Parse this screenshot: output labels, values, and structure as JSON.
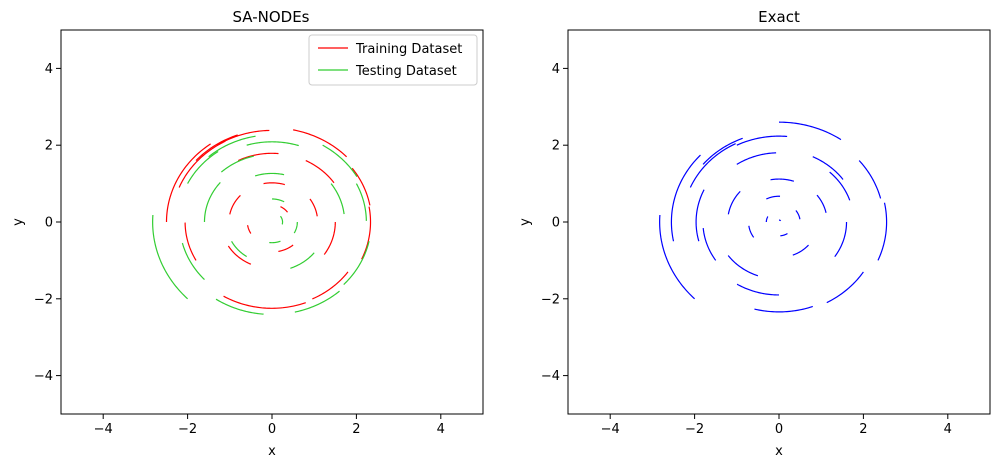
{
  "chart_data": [
    {
      "type": "line",
      "title": "SA-NODEs",
      "xlabel": "x",
      "ylabel": "y",
      "xlim": [
        -5,
        5
      ],
      "ylim": [
        -5,
        5
      ],
      "xticks": [
        -4,
        -2,
        0,
        2,
        4
      ],
      "yticks": [
        -4,
        -2,
        0,
        2,
        4
      ],
      "xtick_labels": [
        "−4",
        "−2",
        "0",
        "2",
        "4"
      ],
      "ytick_labels": [
        "−4",
        "−2",
        "0",
        "2",
        "4"
      ],
      "grid": false,
      "legend": "top-right",
      "legend_entries": [
        "Training Dataset",
        "Testing Dataset"
      ],
      "series": [
        {
          "name": "Training Dataset",
          "color": "#ff0000",
          "trajectories": [
            {
              "start": [
                -2.5,
                0.0
              ],
              "sweep": 0.95
            },
            {
              "start": [
                -2.2,
                0.9
              ],
              "sweep": 0.7
            },
            {
              "start": [
                -1.8,
                1.6
              ],
              "sweep": 0.5
            },
            {
              "start": [
                -1.3,
                2.0
              ],
              "sweep": 0.55
            },
            {
              "start": [
                0.5,
                2.4
              ],
              "sweep": 0.6
            },
            {
              "start": [
                1.9,
                1.4
              ],
              "sweep": 0.45
            },
            {
              "start": [
                2.3,
                0.4
              ],
              "sweep": 0.6
            },
            {
              "start": [
                1.8,
                -1.3
              ],
              "sweep": 0.5
            },
            {
              "start": [
                0.8,
                -2.1
              ],
              "sweep": 0.9
            },
            {
              "start": [
                -1.8,
                -1.0
              ],
              "sweep": 0.5
            },
            {
              "start": [
                -0.8,
                1.6
              ],
              "sweep": 0.55
            },
            {
              "start": [
                0.8,
                1.6
              ],
              "sweep": 0.5
            },
            {
              "start": [
                1.5,
                0.0
              ],
              "sweep": 0.6
            },
            {
              "start": [
                -0.5,
                -1.1
              ],
              "sweep": 0.6
            },
            {
              "start": [
                -1.0,
                0.2
              ],
              "sweep": 0.55
            },
            {
              "start": [
                -0.2,
                1.0
              ],
              "sweep": 0.5
            },
            {
              "start": [
                0.9,
                0.6
              ],
              "sweep": 0.45
            },
            {
              "start": [
                0.5,
                -0.6
              ],
              "sweep": 0.5
            },
            {
              "start": [
                -0.5,
                -0.3
              ],
              "sweep": 0.4
            },
            {
              "start": [
                0.2,
                0.4
              ],
              "sweep": 0.5
            }
          ]
        },
        {
          "name": "Testing Dataset",
          "color": "#32cd32",
          "trajectories": [
            {
              "start": [
                -2.0,
                -2.0
              ],
              "sweep": 0.85
            },
            {
              "start": [
                -2.0,
                1.0
              ],
              "sweep": 0.5
            },
            {
              "start": [
                -1.5,
                1.7
              ],
              "sweep": 0.55
            },
            {
              "start": [
                -0.6,
                2.0
              ],
              "sweep": 0.6
            },
            {
              "start": [
                1.2,
                2.0
              ],
              "sweep": 0.5
            },
            {
              "start": [
                2.0,
                1.0
              ],
              "sweep": 0.45
            },
            {
              "start": [
                2.3,
                -0.5
              ],
              "sweep": 0.55
            },
            {
              "start": [
                1.6,
                -1.8
              ],
              "sweep": 0.5
            },
            {
              "start": [
                -0.2,
                -2.4
              ],
              "sweep": 0.5
            },
            {
              "start": [
                -1.6,
                -1.5
              ],
              "sweep": 0.5
            },
            {
              "start": [
                -1.6,
                0.0
              ],
              "sweep": 0.7
            },
            {
              "start": [
                -0.4,
                1.2
              ],
              "sweep": 0.55
            },
            {
              "start": [
                1.4,
                1.0
              ],
              "sweep": 0.5
            },
            {
              "start": [
                1.0,
                -0.8
              ],
              "sweep": 0.55
            },
            {
              "start": [
                -0.6,
                -0.9
              ],
              "sweep": 0.5
            },
            {
              "start": [
                0.0,
                0.6
              ],
              "sweep": 0.5
            },
            {
              "start": [
                0.6,
                0.0
              ],
              "sweep": 0.5
            },
            {
              "start": [
                0.2,
                -0.5
              ],
              "sweep": 0.5
            },
            {
              "start": [
                0.2,
                0.15
              ],
              "sweep": 0.9
            },
            {
              "start": [
                -1.2,
                1.3
              ],
              "sweep": 0.5
            }
          ]
        }
      ]
    },
    {
      "type": "line",
      "title": "Exact",
      "xlabel": "x",
      "ylabel": "y",
      "xlim": [
        -5,
        5
      ],
      "ylim": [
        -5,
        5
      ],
      "xticks": [
        -4,
        -2,
        0,
        2,
        4
      ],
      "yticks": [
        -4,
        -2,
        0,
        2,
        4
      ],
      "xtick_labels": [
        "−4",
        "−2",
        "0",
        "2",
        "4"
      ],
      "ytick_labels": [
        "−4",
        "−2",
        "0",
        "2",
        "4"
      ],
      "grid": false,
      "series": [
        {
          "color": "#0000ff",
          "trajectories": [
            {
              "start": [
                -2.5,
                -0.5
              ],
              "sweep": 0.95
            },
            {
              "start": [
                -2.1,
                0.9
              ],
              "sweep": 0.7
            },
            {
              "start": [
                -1.8,
                1.5
              ],
              "sweep": 0.5
            },
            {
              "start": [
                -1.0,
                2.0
              ],
              "sweep": 0.55
            },
            {
              "start": [
                0.0,
                2.6
              ],
              "sweep": 0.6
            },
            {
              "start": [
                1.9,
                1.6
              ],
              "sweep": 0.45
            },
            {
              "start": [
                2.5,
                0.5
              ],
              "sweep": 0.6
            },
            {
              "start": [
                2.0,
                -1.3
              ],
              "sweep": 0.5
            },
            {
              "start": [
                0.8,
                -2.2
              ],
              "sweep": 0.6
            },
            {
              "start": [
                -2.0,
                -2.0
              ],
              "sweep": 0.85
            },
            {
              "start": [
                -1.5,
                -1.0
              ],
              "sweep": 0.5
            },
            {
              "start": [
                -1.0,
                1.5
              ],
              "sweep": 0.55
            },
            {
              "start": [
                0.8,
                1.7
              ],
              "sweep": 0.5
            },
            {
              "start": [
                1.6,
                0.0
              ],
              "sweep": 0.6
            },
            {
              "start": [
                -0.5,
                -1.4
              ],
              "sweep": 0.6
            },
            {
              "start": [
                -1.2,
                0.2
              ],
              "sweep": 0.55
            },
            {
              "start": [
                -0.2,
                1.1
              ],
              "sweep": 0.5
            },
            {
              "start": [
                0.9,
                0.7
              ],
              "sweep": 0.45
            },
            {
              "start": [
                0.7,
                -0.6
              ],
              "sweep": 0.5
            },
            {
              "start": [
                -0.6,
                -0.4
              ],
              "sweep": 0.45
            },
            {
              "start": [
                -0.3,
                0.6
              ],
              "sweep": 0.5
            },
            {
              "start": [
                0.4,
                0.3
              ],
              "sweep": 0.5
            },
            {
              "start": [
                0.2,
                -0.3
              ],
              "sweep": 0.5
            },
            {
              "start": [
                -1.9,
                -0.5
              ],
              "sweep": 0.7
            },
            {
              "start": [
                1.2,
                1.3
              ],
              "sweep": 0.5
            },
            {
              "start": [
                0.0,
                -1.9
              ],
              "sweep": 0.55
            },
            {
              "start": [
                -0.3,
                0.0
              ],
              "sweep": 0.5
            },
            {
              "start": [
                0.0,
                0.05
              ],
              "sweep": 0.9
            }
          ]
        }
      ]
    }
  ]
}
